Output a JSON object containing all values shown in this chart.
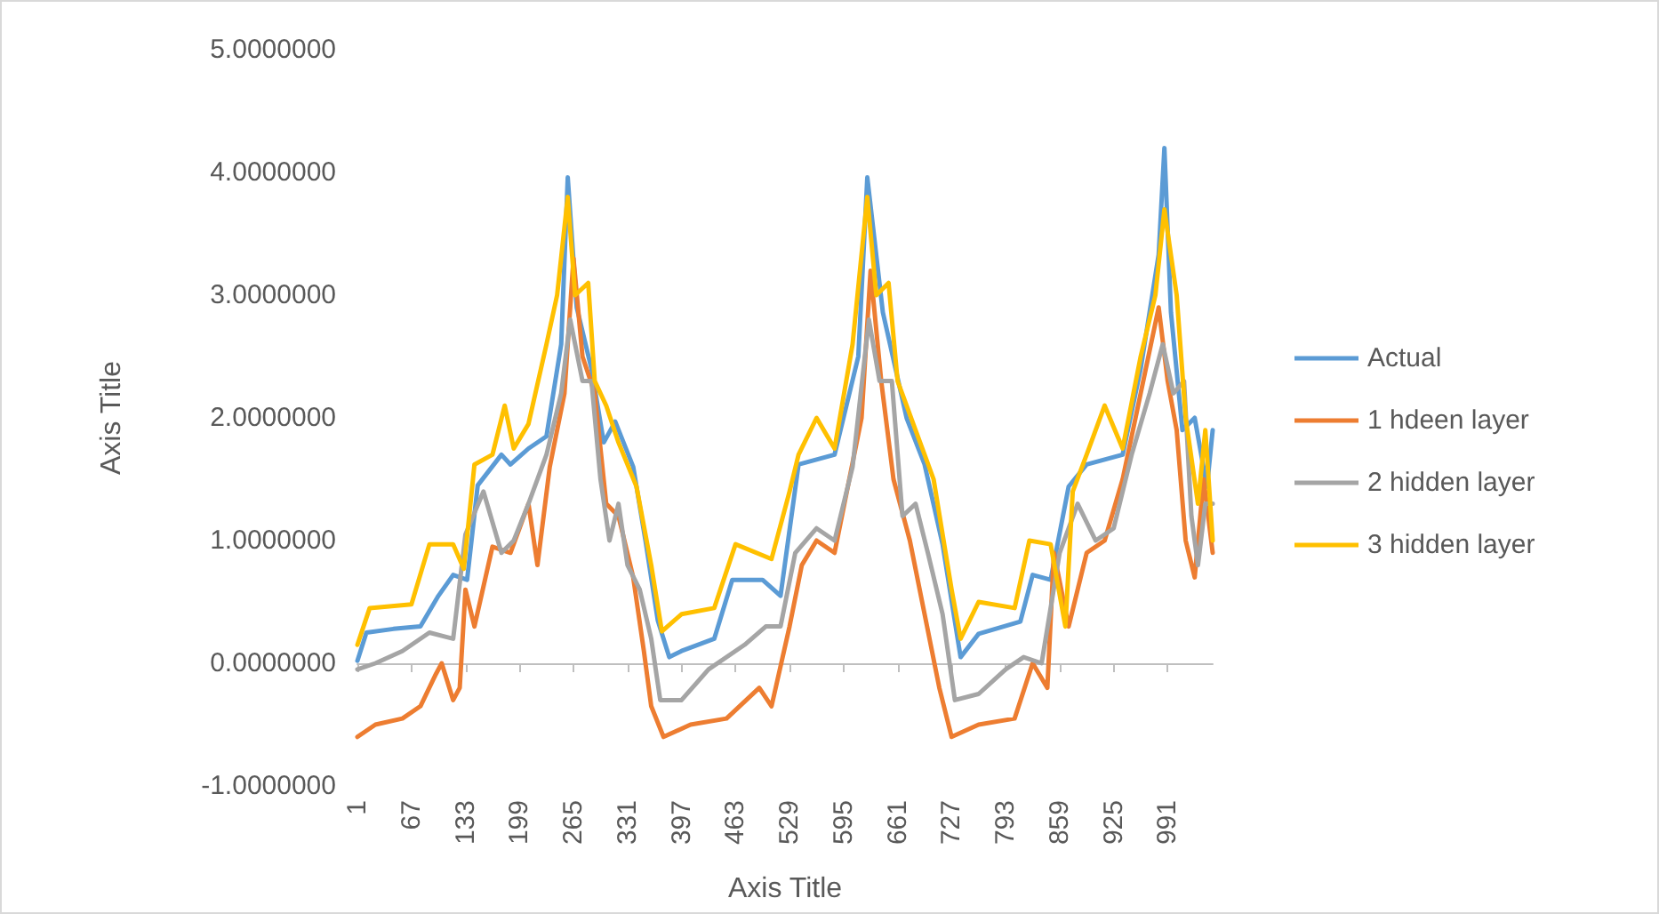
{
  "chart_data": {
    "type": "line",
    "xlabel": "Axis Title",
    "ylabel": "Axis Title",
    "legend": "right",
    "marker": "none",
    "line_style": "solid",
    "xlim": [
      1,
      1046
    ],
    "xticks": [
      1,
      67,
      133,
      199,
      265,
      331,
      397,
      463,
      529,
      595,
      661,
      727,
      793,
      859,
      925,
      991
    ],
    "ylim": [
      -1,
      5
    ],
    "yticks": [
      {
        "value": -1,
        "label": "-1.0000000"
      },
      {
        "value": 0,
        "label": "0.0000000"
      },
      {
        "value": 1,
        "label": "1.0000000"
      },
      {
        "value": 2,
        "label": "2.0000000"
      },
      {
        "value": 3,
        "label": "3.0000000"
      },
      {
        "value": 4,
        "label": "4.0000000"
      },
      {
        "value": 5,
        "label": "5.0000000"
      }
    ],
    "series": [
      {
        "name": "Actual",
        "color": "#5b9bd5",
        "x": [
          1,
          12,
          45,
          78,
          100,
          118,
          135,
          148,
          177,
          188,
          210,
          232,
          250,
          258,
          269,
          287,
          302,
          316,
          338,
          353,
          368,
          382,
          397,
          437,
          459,
          496,
          518,
          540,
          584,
          613,
          624,
          643,
          672,
          694,
          716,
          738,
          760,
          811,
          826,
          848,
          870,
          892,
          936,
          958,
          980,
          987,
          995,
          1009,
          1024,
          1039,
          1046
        ],
        "values": [
          0.02,
          0.25,
          0.28,
          0.3,
          0.55,
          0.72,
          0.68,
          1.45,
          1.7,
          1.62,
          1.75,
          1.85,
          2.6,
          3.96,
          2.9,
          2.4,
          1.8,
          1.97,
          1.6,
          1.0,
          0.35,
          0.05,
          0.1,
          0.2,
          0.68,
          0.68,
          0.55,
          1.62,
          1.7,
          2.5,
          3.96,
          2.86,
          2.0,
          1.62,
          0.97,
          0.05,
          0.24,
          0.34,
          0.72,
          0.68,
          1.44,
          1.62,
          1.7,
          2.4,
          3.33,
          4.2,
          2.86,
          1.9,
          2.0,
          1.44,
          1.9
        ]
      },
      {
        "name": "1 hdeen layer",
        "color": "#ed7d31",
        "x": [
          1,
          23,
          56,
          78,
          96,
          104,
          118,
          126,
          133,
          144,
          166,
          188,
          210,
          221,
          236,
          254,
          265,
          276,
          291,
          305,
          320,
          338,
          351,
          360,
          375,
          408,
          452,
          492,
          507,
          529,
          544,
          562,
          584,
          602,
          617,
          628,
          641,
          656,
          676,
          694,
          712,
          727,
          760,
          804,
          826,
          844,
          852,
          870,
          892,
          914,
          936,
          958,
          980,
          991,
          1002,
          1013,
          1024,
          1035,
          1046
        ],
        "values": [
          -0.6,
          -0.5,
          -0.45,
          -0.35,
          -0.1,
          0.0,
          -0.3,
          -0.2,
          0.6,
          0.3,
          0.95,
          0.9,
          1.3,
          0.8,
          1.6,
          2.2,
          3.3,
          2.5,
          2.2,
          1.3,
          1.2,
          0.7,
          0.1,
          -0.35,
          -0.6,
          -0.5,
          -0.45,
          -0.2,
          -0.35,
          0.3,
          0.8,
          1.0,
          0.9,
          1.5,
          2.0,
          3.2,
          2.3,
          1.5,
          1.0,
          0.4,
          -0.2,
          -0.6,
          -0.5,
          -0.45,
          0.0,
          -0.2,
          0.9,
          0.3,
          0.9,
          1.0,
          1.5,
          2.2,
          2.9,
          2.3,
          1.9,
          1.0,
          0.7,
          1.5,
          0.9
        ]
      },
      {
        "name": "2 hidden layer",
        "color": "#a5a5a5",
        "x": [
          1,
          23,
          56,
          89,
          118,
          133,
          155,
          177,
          192,
          210,
          232,
          250,
          261,
          276,
          287,
          298,
          309,
          320,
          331,
          346,
          360,
          371,
          397,
          430,
          474,
          500,
          518,
          536,
          562,
          584,
          606,
          626,
          639,
          654,
          667,
          683,
          698,
          716,
          731,
          760,
          793,
          815,
          837,
          859,
          881,
          903,
          925,
          947,
          969,
          985,
          998,
          1011,
          1020,
          1028,
          1037,
          1046
        ],
        "values": [
          -0.05,
          0.0,
          0.1,
          0.25,
          0.2,
          1.05,
          1.4,
          0.9,
          1.0,
          1.3,
          1.7,
          2.2,
          2.8,
          2.3,
          2.3,
          1.5,
          1.0,
          1.3,
          0.8,
          0.6,
          0.2,
          -0.3,
          -0.3,
          -0.05,
          0.15,
          0.3,
          0.3,
          0.9,
          1.1,
          1.0,
          1.6,
          2.8,
          2.3,
          2.3,
          1.2,
          1.3,
          0.9,
          0.4,
          -0.3,
          -0.25,
          -0.05,
          0.05,
          0.0,
          0.9,
          1.3,
          1.0,
          1.1,
          1.7,
          2.2,
          2.6,
          2.2,
          2.3,
          1.2,
          0.8,
          1.3,
          1.3
        ]
      },
      {
        "name": "3 hidden layer",
        "color": "#ffc000",
        "x": [
          1,
          16,
          67,
          89,
          118,
          131,
          144,
          166,
          181,
          192,
          210,
          232,
          245,
          258,
          267,
          283,
          291,
          305,
          320,
          342,
          360,
          373,
          397,
          437,
          463,
          507,
          529,
          540,
          562,
          584,
          606,
          624,
          635,
          650,
          661,
          683,
          705,
          727,
          738,
          760,
          804,
          822,
          848,
          866,
          875,
          892,
          914,
          936,
          958,
          976,
          987,
          1002,
          1013,
          1028,
          1037,
          1046
        ],
        "values": [
          0.15,
          0.45,
          0.48,
          0.97,
          0.97,
          0.77,
          1.62,
          1.7,
          2.1,
          1.75,
          1.95,
          2.6,
          3.0,
          3.8,
          3.0,
          3.1,
          2.3,
          2.1,
          1.8,
          1.44,
          0.8,
          0.26,
          0.4,
          0.45,
          0.97,
          0.85,
          1.4,
          1.7,
          2.0,
          1.75,
          2.6,
          3.8,
          3.0,
          3.1,
          2.3,
          1.9,
          1.5,
          0.6,
          0.2,
          0.5,
          0.45,
          1.0,
          0.97,
          0.3,
          1.4,
          1.7,
          2.1,
          1.75,
          2.5,
          3.0,
          3.7,
          3.0,
          2.0,
          1.3,
          1.9,
          1.0
        ]
      }
    ]
  }
}
